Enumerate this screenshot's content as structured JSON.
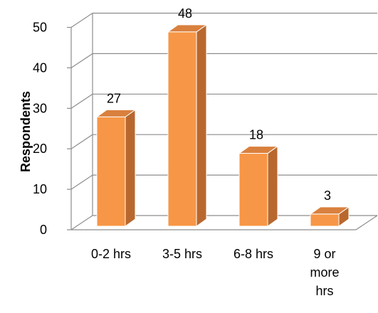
{
  "chart_data": {
    "type": "bar",
    "title": "",
    "xlabel": "",
    "ylabel": "Respondents",
    "categories": [
      "0-2 hrs",
      "3-5 hrs",
      "6-8 hrs",
      "9 or more hrs"
    ],
    "category_lines": [
      [
        "0-2 hrs"
      ],
      [
        "3-5 hrs"
      ],
      [
        "6-8 hrs"
      ],
      [
        "9 or",
        "more",
        "hrs"
      ]
    ],
    "values": [
      27,
      48,
      18,
      3
    ],
    "ylim": [
      0,
      50
    ],
    "yticks": [
      0,
      10,
      20,
      30,
      40,
      50
    ],
    "grid": true,
    "legend": "none",
    "three_d": true,
    "colors": {
      "bar_front": "#F79646",
      "bar_side": "#B8682E",
      "bar_top": "#D9803E",
      "bar_edge": "#FFFFFF",
      "grid": "#8C8C8C"
    }
  }
}
